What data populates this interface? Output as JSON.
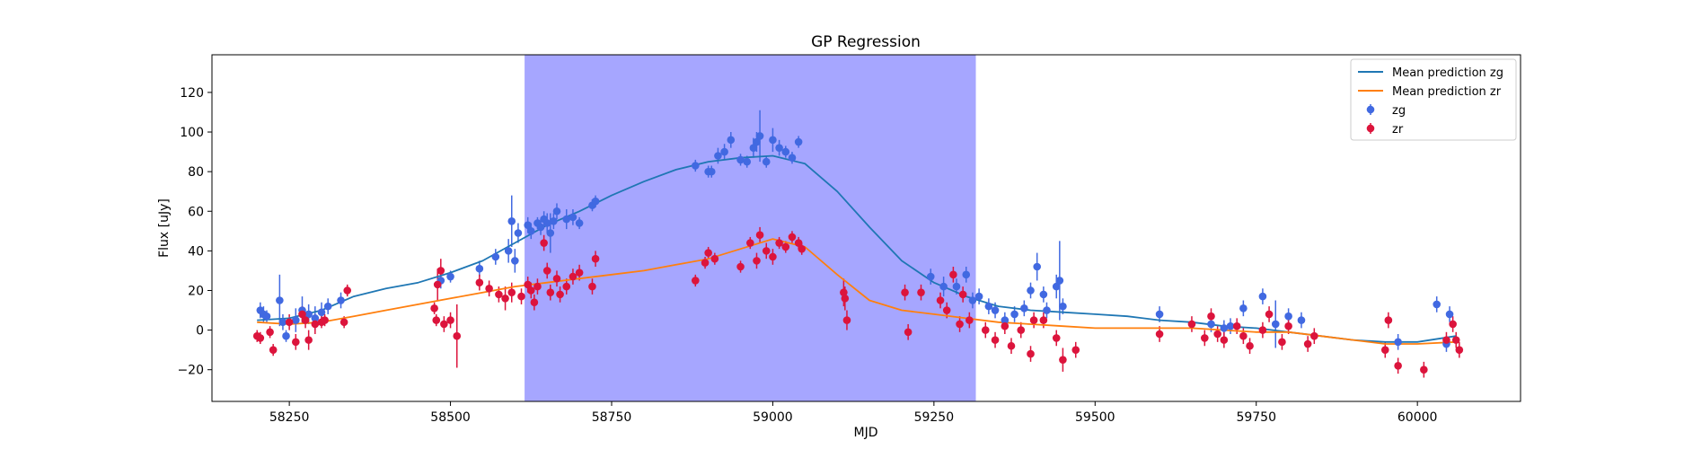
{
  "chart_data": {
    "type": "scatter",
    "title": "GP Regression",
    "xlabel": "MJD",
    "ylabel": "Flux [uJy]",
    "xlim": [
      58130,
      60160
    ],
    "ylim": [
      -36,
      139
    ],
    "xticks": [
      58250,
      58500,
      58750,
      59000,
      59250,
      59500,
      59750,
      60000
    ],
    "yticks": [
      -20,
      0,
      20,
      40,
      60,
      80,
      100,
      120
    ],
    "shaded_span": {
      "x0": 58615,
      "x1": 59315,
      "color": "#a6a6ff"
    },
    "legend_position": "upper right",
    "legend": [
      {
        "label": "Mean prediction zg",
        "kind": "line",
        "color": "#1f77b4"
      },
      {
        "label": "Mean prediction zr",
        "kind": "line",
        "color": "#ff7f0e"
      },
      {
        "label": "zg",
        "kind": "errorbar",
        "color": "#4169e1"
      },
      {
        "label": "zr",
        "kind": "errorbar",
        "color": "#dc143c"
      }
    ],
    "series": [
      {
        "name": "Mean prediction zg",
        "kind": "line",
        "color": "#1f77b4",
        "x": [
          58200,
          58250,
          58300,
          58350,
          58400,
          58450,
          58500,
          58550,
          58600,
          58650,
          58700,
          58750,
          58800,
          58850,
          58900,
          58950,
          59000,
          59050,
          59100,
          59150,
          59200,
          59250,
          59300,
          59350,
          59400,
          59450,
          59500,
          59550,
          59600,
          59650,
          59700,
          59750,
          59800,
          59850,
          59900,
          59950,
          60000,
          60060
        ],
        "y": [
          5,
          6,
          10,
          17,
          21,
          24,
          29,
          35,
          44,
          53,
          60,
          68,
          75,
          81,
          85,
          87,
          88,
          84,
          70,
          52,
          35,
          24,
          17,
          12,
          10,
          9,
          8,
          7,
          5,
          4,
          2,
          1,
          -1,
          -3,
          -5,
          -6,
          -6,
          -3
        ]
      },
      {
        "name": "Mean prediction zr",
        "kind": "line",
        "color": "#ff7f0e",
        "x": [
          58200,
          58250,
          58300,
          58350,
          58400,
          58450,
          58500,
          58550,
          58600,
          58650,
          58700,
          58750,
          58800,
          58850,
          58900,
          58950,
          59000,
          59050,
          59100,
          59150,
          59200,
          59250,
          59300,
          59350,
          59400,
          59450,
          59500,
          59550,
          59600,
          59650,
          59700,
          59750,
          59800,
          59850,
          59900,
          59950,
          60000,
          60060
        ],
        "y": [
          4,
          3,
          4,
          7,
          10,
          13,
          16,
          19,
          22,
          24,
          26,
          28,
          30,
          33,
          36,
          41,
          46,
          42,
          28,
          15,
          10,
          8,
          6,
          4,
          3,
          2,
          1,
          1,
          1,
          1,
          0,
          -1,
          -1,
          -3,
          -5,
          -7,
          -7,
          -6
        ]
      },
      {
        "name": "zg",
        "kind": "errorbar",
        "color": "#4169e1",
        "x": [
          58205,
          58210,
          58215,
          58235,
          58240,
          58245,
          58260,
          58270,
          58280,
          58290,
          58300,
          58310,
          58330,
          58485,
          58500,
          58545,
          58570,
          58590,
          58595,
          58600,
          58605,
          58620,
          58625,
          58635,
          58640,
          58645,
          58650,
          58655,
          58660,
          58665,
          58680,
          58690,
          58700,
          58720,
          58725,
          58880,
          58900,
          58905,
          58915,
          58925,
          58935,
          58950,
          58960,
          58970,
          58975,
          58980,
          58990,
          59000,
          59010,
          59020,
          59030,
          59040,
          59245,
          59265,
          59285,
          59300,
          59310,
          59320,
          59335,
          59345,
          59360,
          59375,
          59390,
          59400,
          59410,
          59420,
          59425,
          59440,
          59445,
          59450,
          59600,
          59680,
          59700,
          59710,
          59730,
          59760,
          59780,
          59800,
          59820,
          59970,
          60030,
          60045,
          60050
        ],
        "y": [
          10,
          8,
          7,
          15,
          4,
          -3,
          5,
          10,
          8,
          6,
          9,
          12,
          15,
          25,
          27,
          31,
          37,
          40,
          55,
          35,
          49,
          53,
          50,
          54,
          52,
          56,
          54,
          49,
          55,
          60,
          56,
          57,
          54,
          63,
          65,
          83,
          80,
          80,
          88,
          90,
          96,
          86,
          85,
          92,
          95,
          98,
          85,
          96,
          92,
          90,
          87,
          95,
          27,
          22,
          22,
          28,
          15,
          17,
          12,
          10,
          5,
          8,
          11,
          20,
          32,
          18,
          10,
          22,
          25,
          12,
          8,
          3,
          1,
          2,
          11,
          17,
          3,
          7,
          5,
          -6,
          13,
          -7,
          8
        ],
        "err": [
          4,
          4,
          3,
          13,
          4,
          3,
          6,
          7,
          5,
          6,
          5,
          4,
          4,
          4,
          3,
          4,
          4,
          6,
          13,
          6,
          5,
          4,
          4,
          3,
          4,
          4,
          5,
          10,
          4,
          4,
          5,
          4,
          3,
          3,
          3,
          3,
          3,
          3,
          4,
          4,
          4,
          3,
          3,
          5,
          5,
          13,
          3,
          6,
          4,
          3,
          3,
          3,
          4,
          5,
          4,
          4,
          4,
          4,
          4,
          4,
          4,
          4,
          4,
          4,
          7,
          4,
          4,
          6,
          20,
          4,
          4,
          4,
          4,
          4,
          4,
          4,
          12,
          4,
          4,
          4,
          4,
          4,
          4
        ]
      },
      {
        "name": "zr",
        "kind": "errorbar",
        "color": "#dc143c",
        "x": [
          58200,
          58205,
          58220,
          58225,
          58250,
          58260,
          58270,
          58275,
          58280,
          58290,
          58300,
          58305,
          58335,
          58340,
          58475,
          58478,
          58480,
          58485,
          58490,
          58500,
          58510,
          58545,
          58560,
          58575,
          58585,
          58595,
          58610,
          58620,
          58625,
          58630,
          58635,
          58645,
          58650,
          58655,
          58665,
          58670,
          58680,
          58690,
          58700,
          58720,
          58725,
          58880,
          58895,
          58900,
          58910,
          58950,
          58965,
          58975,
          58980,
          58990,
          59000,
          59010,
          59020,
          59030,
          59040,
          59045,
          59110,
          59112,
          59115,
          59205,
          59210,
          59230,
          59260,
          59270,
          59280,
          59290,
          59295,
          59305,
          59330,
          59345,
          59360,
          59370,
          59385,
          59400,
          59405,
          59420,
          59440,
          59450,
          59470,
          59600,
          59650,
          59670,
          59680,
          59690,
          59700,
          59720,
          59730,
          59740,
          59760,
          59770,
          59790,
          59800,
          59830,
          59840,
          59950,
          59955,
          59970,
          60010,
          60045,
          60055,
          60060,
          60065
        ],
        "y": [
          -3,
          -4,
          -1,
          -10,
          4,
          -6,
          8,
          5,
          -5,
          3,
          4,
          5,
          4,
          20,
          11,
          5,
          23,
          30,
          3,
          5,
          -3,
          24,
          21,
          18,
          16,
          19,
          17,
          23,
          20,
          14,
          22,
          44,
          30,
          19,
          26,
          18,
          22,
          27,
          29,
          22,
          36,
          25,
          34,
          39,
          36,
          32,
          44,
          35,
          48,
          40,
          37,
          44,
          42,
          47,
          44,
          41,
          19,
          16,
          5,
          19,
          -1,
          19,
          15,
          10,
          28,
          3,
          18,
          5,
          0,
          -5,
          2,
          -8,
          0,
          -12,
          5,
          5,
          -4,
          -15,
          -10,
          -2,
          3,
          -4,
          7,
          -2,
          -5,
          2,
          -3,
          -8,
          0,
          8,
          -6,
          2,
          -7,
          -3,
          -10,
          5,
          -18,
          -20,
          -5,
          3,
          -5,
          -10
        ],
        "err": [
          3,
          3,
          3,
          3,
          4,
          4,
          4,
          4,
          5,
          5,
          3,
          3,
          3,
          3,
          3,
          3,
          8,
          6,
          4,
          4,
          16,
          4,
          4,
          4,
          6,
          5,
          4,
          4,
          4,
          4,
          4,
          4,
          4,
          4,
          4,
          4,
          4,
          4,
          4,
          4,
          4,
          3,
          3,
          3,
          3,
          3,
          3,
          4,
          4,
          4,
          4,
          3,
          3,
          3,
          3,
          3,
          7,
          6,
          5,
          4,
          4,
          4,
          4,
          4,
          4,
          4,
          4,
          4,
          4,
          4,
          4,
          4,
          4,
          4,
          4,
          4,
          4,
          6,
          4,
          4,
          4,
          4,
          4,
          4,
          4,
          4,
          4,
          4,
          4,
          4,
          4,
          4,
          4,
          4,
          4,
          4,
          4,
          4,
          4,
          4,
          4,
          4
        ]
      }
    ]
  }
}
